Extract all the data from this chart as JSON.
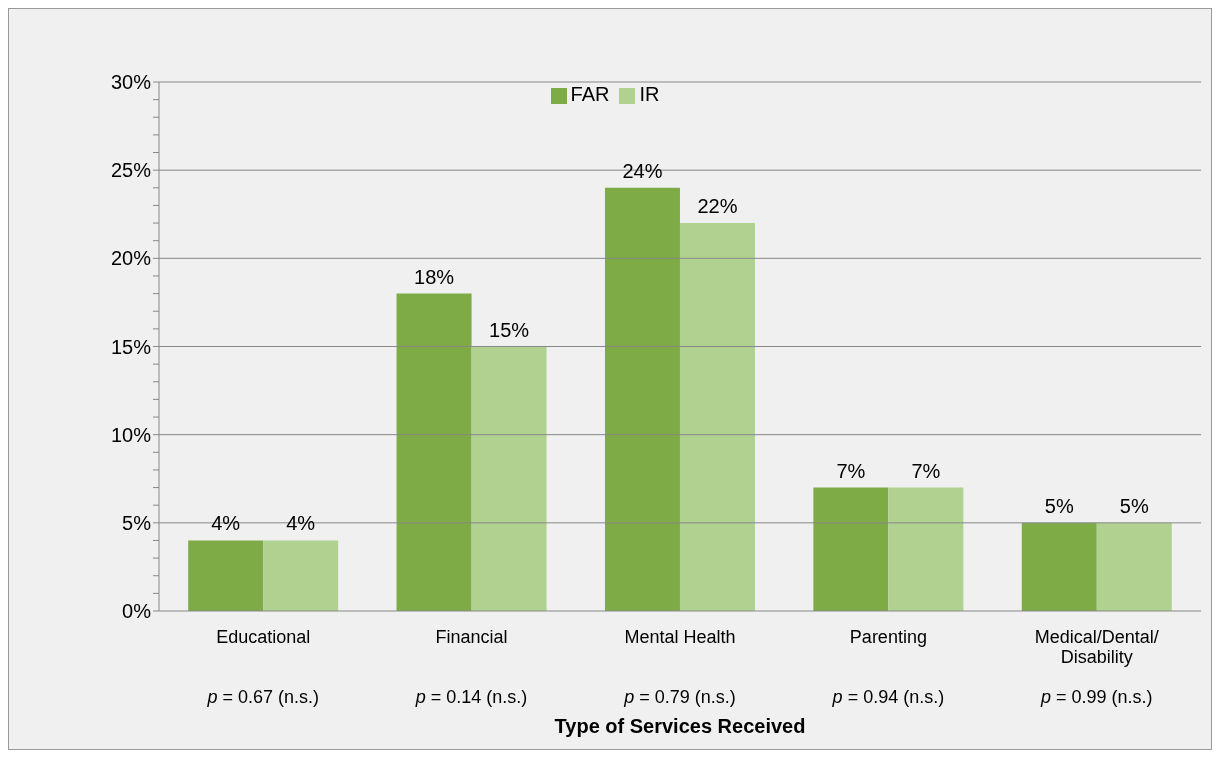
{
  "chart_data": {
    "type": "bar",
    "xlabel": "Type of Services Received",
    "categories": [
      "Educational",
      "Financial",
      "Mental Health",
      "Parenting",
      "Medical/Dental/Disability"
    ],
    "series": [
      {
        "name": "FAR",
        "color": "#7eab46",
        "values": [
          4,
          18,
          24,
          7,
          5
        ],
        "value_labels": [
          "4%",
          "18%",
          "24%",
          "7%",
          "5%"
        ]
      },
      {
        "name": "IR",
        "color": "#b0d190",
        "values": [
          4,
          15,
          22,
          7,
          5
        ],
        "value_labels": [
          "4%",
          "15%",
          "22%",
          "7%",
          "5%"
        ]
      }
    ],
    "ylim": [
      0,
      30
    ],
    "yticks": [
      {
        "value": 0,
        "label": "0%"
      },
      {
        "value": 1,
        "label": null
      },
      {
        "value": 2,
        "label": null
      },
      {
        "value": 3,
        "label": null
      },
      {
        "value": 4,
        "label": null
      },
      {
        "value": 5,
        "label": "5%"
      },
      {
        "value": 6,
        "label": null
      },
      {
        "value": 7,
        "label": null
      },
      {
        "value": 8,
        "label": null
      },
      {
        "value": 9,
        "label": null
      },
      {
        "value": 10,
        "label": "10%"
      },
      {
        "value": 11,
        "label": null
      },
      {
        "value": 12,
        "label": null
      },
      {
        "value": 13,
        "label": null
      },
      {
        "value": 14,
        "label": null
      },
      {
        "value": 15,
        "label": "15%"
      },
      {
        "value": 16,
        "label": null
      },
      {
        "value": 17,
        "label": null
      },
      {
        "value": 18,
        "label": null
      },
      {
        "value": 19,
        "label": null
      },
      {
        "value": 20,
        "label": "20%"
      },
      {
        "value": 21,
        "label": null
      },
      {
        "value": 22,
        "label": null
      },
      {
        "value": 23,
        "label": null
      },
      {
        "value": 24,
        "label": null
      },
      {
        "value": 25,
        "label": "25%"
      },
      {
        "value": 26,
        "label": null
      },
      {
        "value": 27,
        "label": null
      },
      {
        "value": 28,
        "label": null
      },
      {
        "value": 29,
        "label": null
      },
      {
        "value": 30,
        "label": "30%"
      }
    ],
    "grid": "y",
    "legend": "top",
    "annotations": [
      "p = 0.67 (n.s.)",
      "p = 0.14 (n.s.)",
      "p = 0.79 (n.s.)",
      "p = 0.94 (n.s.)",
      "p = 0.99 (n.s.)"
    ]
  }
}
